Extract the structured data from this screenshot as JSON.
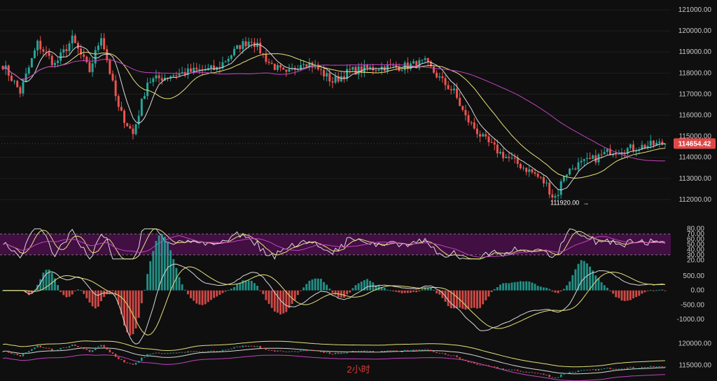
{
  "timeframe_label": "2小时",
  "last_price_label": "114654.42",
  "low_label": "111920.00",
  "low_arrow": "→",
  "colors": {
    "up": "#26a69a",
    "down": "#ef5350",
    "ma_white": "#d9d9d9",
    "ma_yellow": "#e6e07a",
    "ma_magenta": "#c243c2",
    "rsi_band": "#4a0f4a",
    "price_badge": "#e04848",
    "grid": "#1f1f1f"
  },
  "chart_data": [
    {
      "type": "candlestick",
      "panel": "price",
      "y_ticks": [
        "121000.00",
        "120000.00",
        "119000.00",
        "118000.00",
        "117000.00",
        "116000.00",
        "115000.00",
        "114000.00",
        "113000.00",
        "112000.00"
      ],
      "ylim": [
        111500,
        121300
      ],
      "last_price": 114654.42,
      "low_marker": 111920.0,
      "anchors_close": [
        [
          0,
          118400
        ],
        [
          6,
          117100
        ],
        [
          12,
          119400
        ],
        [
          18,
          118400
        ],
        [
          24,
          119600
        ],
        [
          30,
          118100
        ],
        [
          34,
          119800
        ],
        [
          40,
          116300
        ],
        [
          45,
          115100
        ],
        [
          50,
          117600
        ],
        [
          58,
          117900
        ],
        [
          66,
          118100
        ],
        [
          74,
          118200
        ],
        [
          82,
          119300
        ],
        [
          86,
          119600
        ],
        [
          92,
          118500
        ],
        [
          98,
          117900
        ],
        [
          104,
          118600
        ],
        [
          108,
          118300
        ],
        [
          114,
          117600
        ],
        [
          120,
          118100
        ],
        [
          126,
          118200
        ],
        [
          132,
          118300
        ],
        [
          138,
          118300
        ],
        [
          146,
          118500
        ],
        [
          152,
          117600
        ],
        [
          156,
          117100
        ],
        [
          160,
          115900
        ],
        [
          166,
          114900
        ],
        [
          172,
          114200
        ],
        [
          178,
          113700
        ],
        [
          184,
          113200
        ],
        [
          188,
          112700
        ],
        [
          191,
          111920
        ],
        [
          194,
          113200
        ],
        [
          198,
          113600
        ],
        [
          204,
          113900
        ],
        [
          210,
          114300
        ],
        [
          216,
          114400
        ],
        [
          222,
          114550
        ],
        [
          228,
          114654
        ]
      ],
      "overlays": [
        "MA-short",
        "MA-mid",
        "MA-long"
      ]
    },
    {
      "type": "line",
      "panel": "rsi",
      "y_ticks": [
        "80.00",
        "70.00",
        "60.00",
        "50.00",
        "40.00",
        "30.00",
        "20.00"
      ],
      "ylim": [
        15,
        85
      ],
      "band": [
        30,
        70
      ]
    },
    {
      "type": "histogram",
      "panel": "macd",
      "y_ticks": [
        "500.00",
        "0.00",
        "-500.00",
        "-1000.00"
      ],
      "ylim": [
        -1150,
        600
      ]
    },
    {
      "type": "line",
      "panel": "bottom",
      "y_ticks": [
        "120000.00",
        "115000.00"
      ],
      "ylim": [
        112000,
        122500
      ]
    }
  ]
}
